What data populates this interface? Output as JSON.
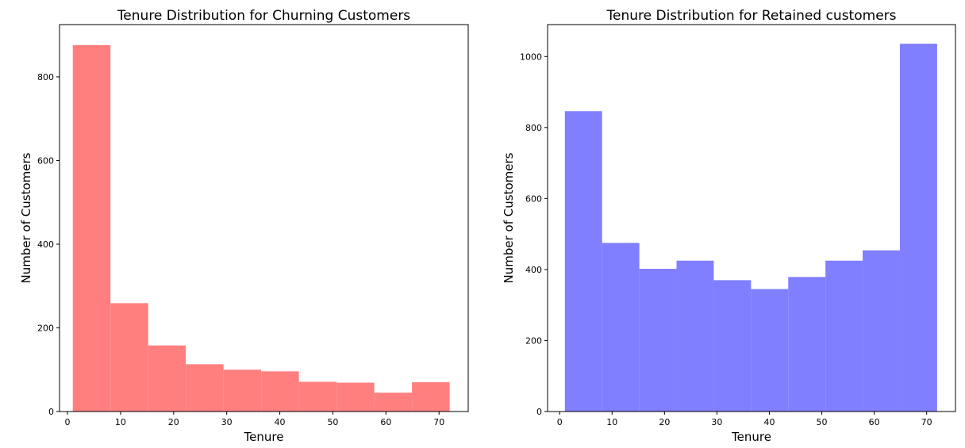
{
  "chart_data": [
    {
      "type": "bar",
      "title": "Tenure Distribution for Churning Customers",
      "xlabel": "Tenure",
      "ylabel": "Number of Customers",
      "color": "#ff7f7f",
      "bin_edges": [
        1,
        8.1,
        15.2,
        22.3,
        29.4,
        36.5,
        43.6,
        50.7,
        57.8,
        64.9,
        72
      ],
      "values": [
        876,
        259,
        158,
        113,
        100,
        96,
        71,
        69,
        45,
        70
      ],
      "xlim": [
        -1.5,
        75.5
      ],
      "ylim": [
        0,
        925
      ],
      "xticks": [
        0,
        10,
        20,
        30,
        40,
        50,
        60,
        70
      ],
      "yticks": [
        0,
        200,
        400,
        600,
        800
      ],
      "grid": false
    },
    {
      "type": "bar",
      "title": "Tenure Distribution for Retained customers",
      "xlabel": "Tenure",
      "ylabel": "Number of Customers",
      "color": "#7f7fff",
      "bin_edges": [
        1,
        8.1,
        15.2,
        22.3,
        29.4,
        36.5,
        43.6,
        50.7,
        57.8,
        64.9,
        72
      ],
      "values": [
        846,
        475,
        402,
        425,
        370,
        345,
        379,
        425,
        454,
        1036
      ],
      "xlim": [
        -2.3,
        75.5
      ],
      "ylim": [
        0,
        1090
      ],
      "xticks": [
        0,
        10,
        20,
        30,
        40,
        50,
        60,
        70
      ],
      "yticks": [
        0,
        200,
        400,
        600,
        800,
        1000
      ],
      "grid": false
    }
  ]
}
